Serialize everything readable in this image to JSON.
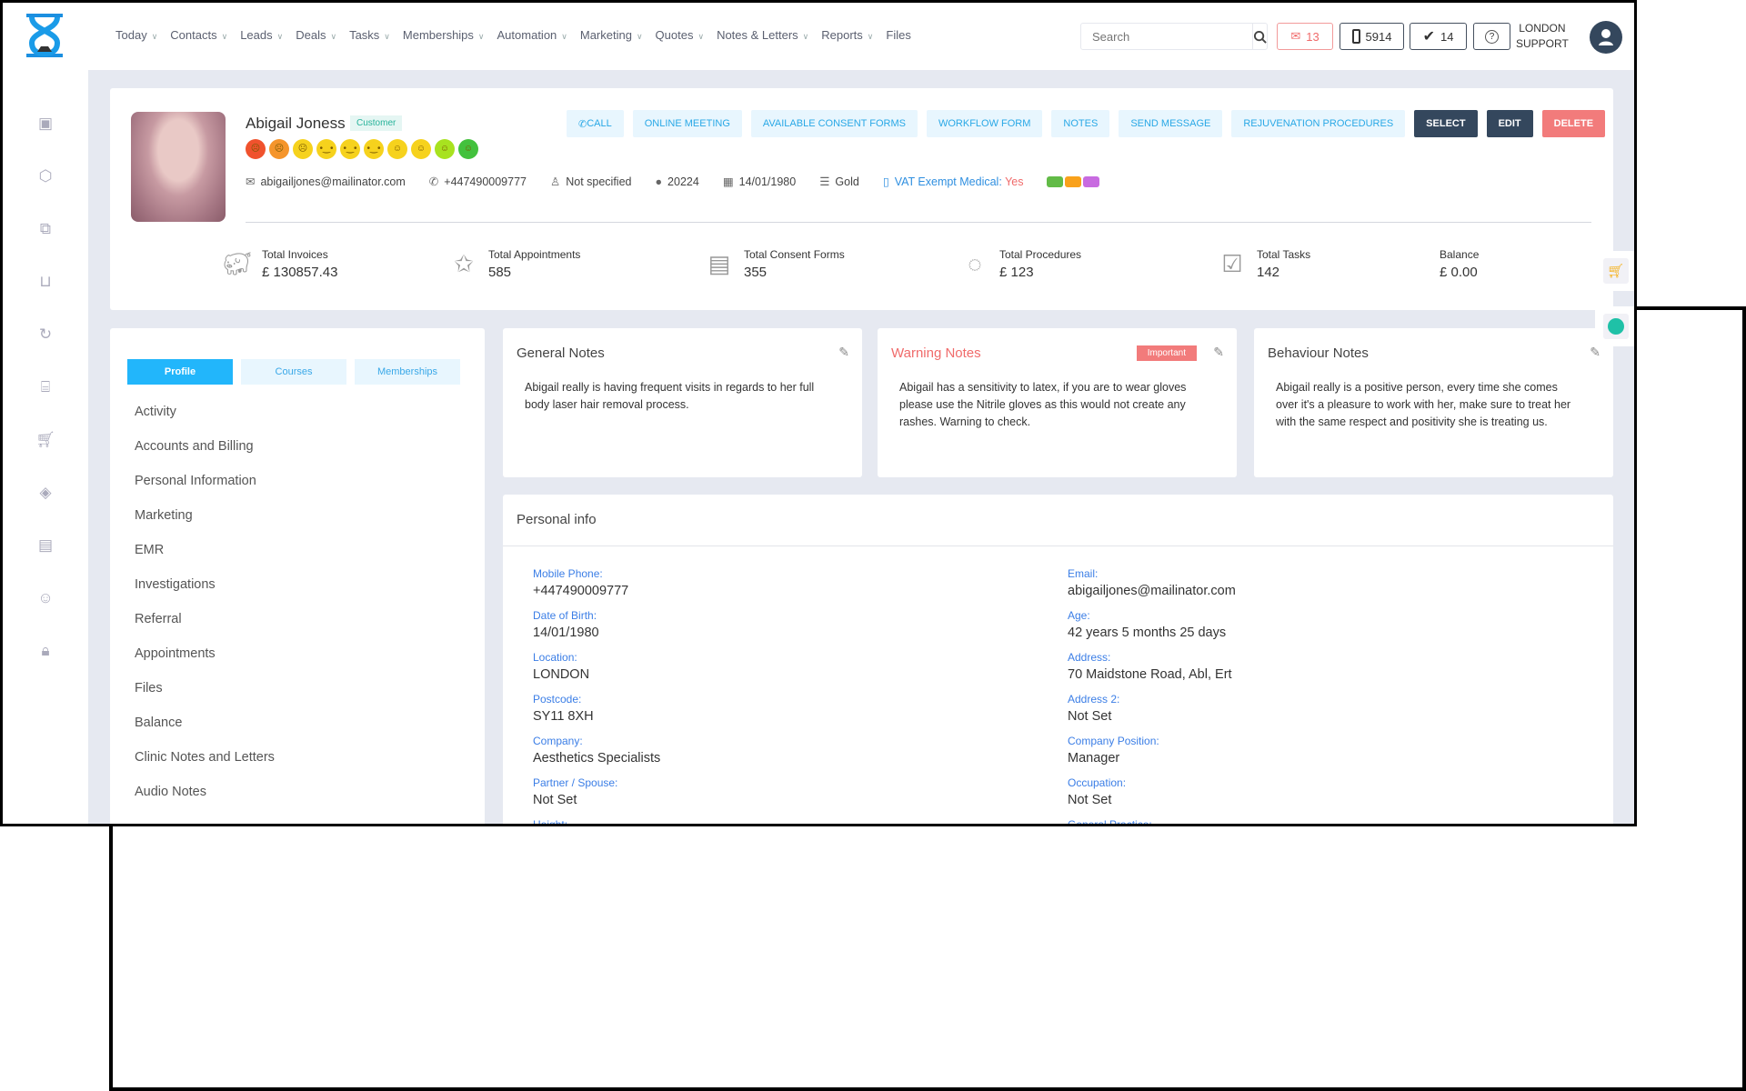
{
  "nav": [
    "Today",
    "Contacts",
    "Leads",
    "Deals",
    "Tasks",
    "Memberships",
    "Automation",
    "Marketing",
    "Quotes",
    "Notes & Letters",
    "Reports",
    "Files"
  ],
  "search": {
    "placeholder": "Search"
  },
  "toolbar": {
    "mail_count": "13",
    "phone_count": "5914",
    "tasks_count": "14",
    "help": "?"
  },
  "user": {
    "line1": "LONDON",
    "line2": "SUPPORT"
  },
  "sidebar_icons": [
    "calendar-icon",
    "cube-icon",
    "copy-icon",
    "basket-icon",
    "history-icon",
    "gift-icon",
    "cart-icon",
    "tag-icon",
    "report-icon",
    "user-sync-icon",
    "lock-icon"
  ],
  "profile": {
    "name": "Abigail Joness",
    "badge": "Customer",
    "mood_colors": [
      "#f0522d",
      "#f5952b",
      "#f6d21d",
      "#f6d21d",
      "#f6d21d",
      "#f6d21d",
      "#f6d21d",
      "#f6d21d",
      "#a8e21f",
      "#43c13d"
    ],
    "email": "abigailjones@mailinator.com",
    "phone": "+447490009777",
    "gender": "Not specified",
    "id": "20224",
    "dob": "14/01/1980",
    "tier": "Gold",
    "vat_label": "VAT Exempt Medical:",
    "vat_value": "Yes",
    "tag_colors": [
      "#62bb47",
      "#f9a11b",
      "#c86be0"
    ],
    "actions": [
      "CALL",
      "ONLINE MEETING",
      "AVAILABLE CONSENT FORMS",
      "WORKFLOW FORM",
      "NOTES",
      "SEND MESSAGE",
      "REJUVENATION PROCEDURES",
      "SELECT",
      "EDIT",
      "DELETE"
    ],
    "stats": [
      {
        "label": "Total Invoices",
        "value": "£ 130857.43"
      },
      {
        "label": "Total Appointments",
        "value": "585"
      },
      {
        "label": "Total Consent Forms",
        "value": "355"
      },
      {
        "label": "Total Procedures",
        "value": "£ 123"
      },
      {
        "label": "Total Tasks",
        "value": "142"
      },
      {
        "label": "Balance",
        "value": "£ 0.00"
      }
    ]
  },
  "tabs": [
    "Profile",
    "Courses",
    "Memberships"
  ],
  "menu": [
    "Activity",
    "Accounts and Billing",
    "Personal Information",
    "Marketing",
    "EMR",
    "Investigations",
    "Referral",
    "Appointments",
    "Files",
    "Balance",
    "Clinic Notes and Letters",
    "Audio Notes"
  ],
  "notes": [
    {
      "title": "General Notes",
      "text": "Abigail really is having frequent visits in regards to her full body laser hair removal process."
    },
    {
      "title": "Warning Notes",
      "badge": "Important",
      "text": "Abigail has a sensitivity to latex, if you are to wear gloves please use the Nitrile gloves as this would not create any rashes. Warning to check."
    },
    {
      "title": "Behaviour Notes",
      "text": "Abigail really is a positive person, every time she comes over it's a pleasure to work with her, make sure to treat her with the same respect and positivity she is treating us."
    }
  ],
  "personal_info": {
    "title": "Personal info",
    "left": [
      {
        "label": "Mobile Phone:",
        "value": "+447490009777"
      },
      {
        "label": "Date of Birth:",
        "value": "14/01/1980"
      },
      {
        "label": "Location:",
        "value": "LONDON"
      },
      {
        "label": "Postcode:",
        "value": "SY11 8XH"
      },
      {
        "label": "Company:",
        "value": "Aesthetics Specialists"
      },
      {
        "label": "Partner / Spouse:",
        "value": "Not Set"
      },
      {
        "label": "Height:",
        "value": ""
      }
    ],
    "right": [
      {
        "label": "Email:",
        "value": "abigailjones@mailinator.com"
      },
      {
        "label": "Age:",
        "value": "42 years 5 months 25 days"
      },
      {
        "label": "Address:",
        "value": "70 Maidstone Road, Abl, Ert"
      },
      {
        "label": "Address 2:",
        "value": "Not Set"
      },
      {
        "label": "Company Position:",
        "value": "Manager"
      },
      {
        "label": "Occupation:",
        "value": "Not Set"
      },
      {
        "label": "General Practice:",
        "value": ""
      }
    ]
  }
}
